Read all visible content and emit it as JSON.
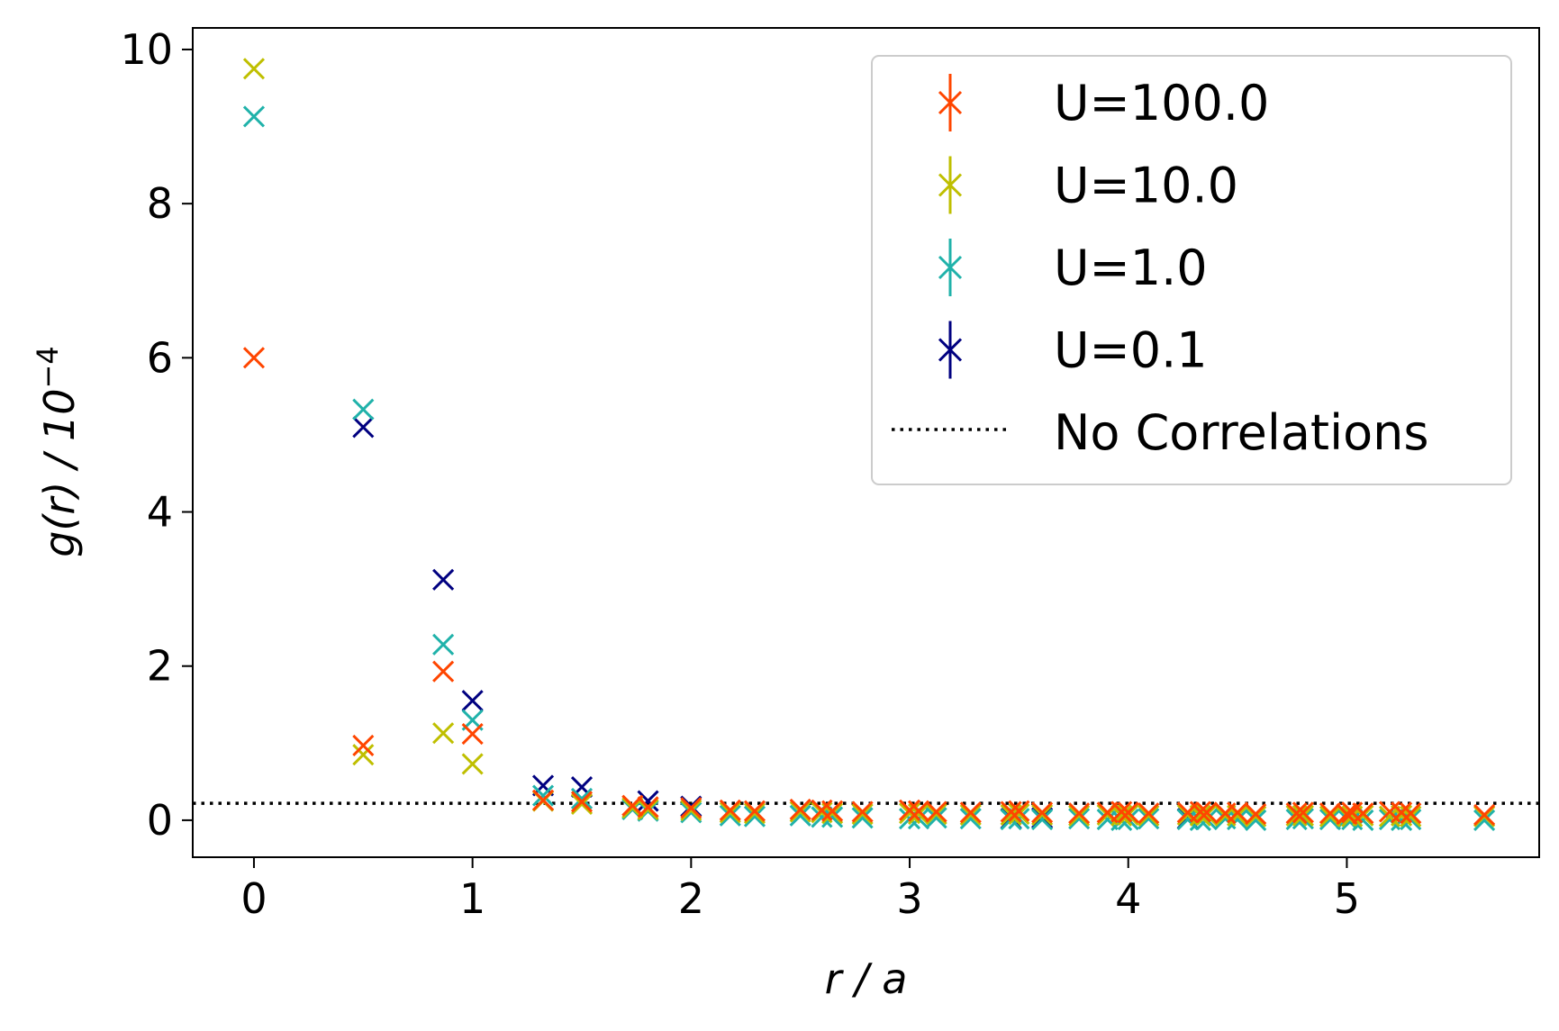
{
  "chart_data": {
    "type": "scatter",
    "xlabel": "r / a",
    "ylabel": "g(r) / 10",
    "ylabel_exponent": "−4",
    "xlim": [
      -0.28,
      5.88
    ],
    "ylim": [
      -0.48,
      10.28
    ],
    "xticks": [
      0,
      1,
      2,
      3,
      4,
      5
    ],
    "yticks": [
      0,
      2,
      4,
      6,
      8,
      10
    ],
    "grid": false,
    "legend_position": "top-right",
    "reference_line": {
      "name": "No Correlations",
      "y": 0.22,
      "style": "dotted",
      "color": "#000000"
    },
    "series": [
      {
        "name": "U=100.0",
        "color": "#FF4500",
        "x": [
          0,
          0.5,
          0.866,
          1.0,
          1.323,
          1.5,
          1.732,
          1.803,
          2.0,
          2.179,
          2.291,
          2.5,
          2.598,
          2.646,
          2.784,
          3.0,
          3.041,
          3.122,
          3.279,
          3.464,
          3.5,
          3.606,
          3.775,
          3.905,
          3.969,
          4.0,
          4.093,
          4.272,
          4.33,
          4.359,
          4.444,
          4.5,
          4.583,
          4.77,
          4.8,
          4.924,
          5.0,
          5.024,
          5.074,
          5.196,
          5.25,
          5.292,
          5.629
        ],
        "y": [
          6.0,
          0.97,
          1.93,
          1.12,
          0.26,
          0.24,
          0.19,
          0.17,
          0.16,
          0.13,
          0.12,
          0.14,
          0.13,
          0.12,
          0.11,
          0.13,
          0.12,
          0.11,
          0.1,
          0.11,
          0.12,
          0.1,
          0.09,
          0.1,
          0.11,
          0.1,
          0.09,
          0.1,
          0.11,
          0.1,
          0.09,
          0.1,
          0.08,
          0.09,
          0.1,
          0.09,
          0.08,
          0.1,
          0.09,
          0.11,
          0.1,
          0.09,
          0.07
        ]
      },
      {
        "name": "U=10.0",
        "color": "#BFBF00",
        "x": [
          0,
          0.5,
          0.866,
          1.0,
          1.323,
          1.5,
          1.732,
          1.803,
          2.0,
          2.179,
          2.291,
          2.5,
          2.598,
          2.646,
          2.784,
          3.0,
          3.041,
          3.122,
          3.279,
          3.464,
          3.5,
          3.606,
          3.775,
          3.905,
          3.969,
          4.0,
          4.093,
          4.272,
          4.33,
          4.359,
          4.444,
          4.5,
          4.583,
          4.77,
          4.8,
          4.924,
          5.0,
          5.024,
          5.074,
          5.196,
          5.25,
          5.292,
          5.629
        ],
        "y": [
          9.75,
          0.85,
          1.13,
          0.73,
          0.25,
          0.21,
          0.16,
          0.14,
          0.13,
          0.1,
          0.09,
          0.11,
          0.1,
          0.09,
          0.08,
          0.09,
          0.08,
          0.08,
          0.07,
          0.07,
          0.08,
          0.07,
          0.06,
          0.07,
          0.06,
          0.07,
          0.06,
          0.07,
          0.06,
          0.07,
          0.06,
          0.06,
          0.05,
          0.06,
          0.06,
          0.05,
          0.06,
          0.05,
          0.06,
          0.05,
          0.06,
          0.05,
          0.05
        ]
      },
      {
        "name": "U=1.0",
        "color": "#20B2AA",
        "x": [
          0,
          0.5,
          0.866,
          1.0,
          1.323,
          1.5,
          1.732,
          1.803,
          2.0,
          2.179,
          2.291,
          2.5,
          2.598,
          2.646,
          2.784,
          3.0,
          3.041,
          3.122,
          3.279,
          3.464,
          3.5,
          3.606,
          3.775,
          3.905,
          3.969,
          4.0,
          4.093,
          4.272,
          4.33,
          4.359,
          4.444,
          4.5,
          4.583,
          4.77,
          4.8,
          4.924,
          5.0,
          5.024,
          5.074,
          5.196,
          5.25,
          5.292,
          5.629
        ],
        "y": [
          9.13,
          5.33,
          2.28,
          1.3,
          0.32,
          0.28,
          0.14,
          0.12,
          0.1,
          0.06,
          0.05,
          0.06,
          0.04,
          0.04,
          0.03,
          0.02,
          0.02,
          0.03,
          0.02,
          0.01,
          0.02,
          0.01,
          0.02,
          0.01,
          0.0,
          0.01,
          0.02,
          0.01,
          0.0,
          0.01,
          0.02,
          0.01,
          0.0,
          0.01,
          0.02,
          0.01,
          0.02,
          0.01,
          0.0,
          0.01,
          0.0,
          0.01,
          0.0
        ]
      },
      {
        "name": "U=0.1",
        "color": "#000080",
        "x": [
          0.5,
          0.866,
          1.0,
          1.323,
          1.5,
          1.803,
          2.0,
          3.464,
          3.606,
          4.272
        ],
        "y": [
          5.1,
          3.12,
          1.55,
          0.45,
          0.43,
          0.25,
          0.18,
          0.02,
          0.03,
          0.02
        ]
      }
    ]
  }
}
